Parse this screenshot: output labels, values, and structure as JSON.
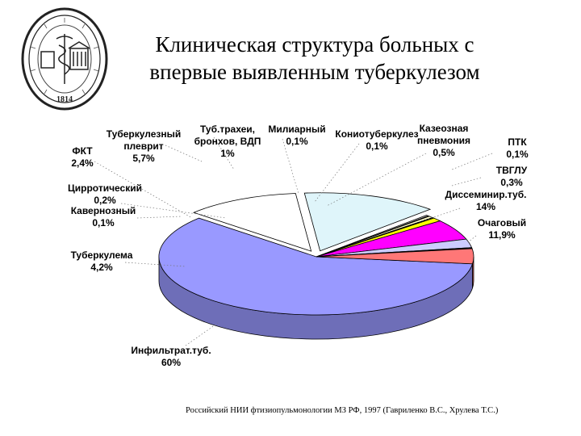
{
  "title_line1": "Клиническая структура больных с",
  "title_line2": "впервые выявленным туберкулезом",
  "seal": {
    "year": "1814",
    "icon": "caduceus-emblem"
  },
  "source": "Российский НИИ фтизиопульмонологии МЗ РФ, 1997 (Гавриленко В.С., Хрулева Т.С.)",
  "chart_data": {
    "type": "pie",
    "title": "Клиническая структура больных с впервые выявленным туберкулезом",
    "legend": "none",
    "slices": [
      {
        "name": "Инфильтрат.туб.",
        "value": 60,
        "label": "60%",
        "color": "#9999ff"
      },
      {
        "name": "Очаговый",
        "value": 11.9,
        "label": "11,9%",
        "color": "#ffffff"
      },
      {
        "name": "Диссеминир.туб.",
        "value": 14,
        "label": "14%",
        "color": "#dff5fa"
      },
      {
        "name": "ТВГЛУ",
        "value": 0.3,
        "label": "0,3%",
        "color": "#a0a0a0"
      },
      {
        "name": "ПТК",
        "value": 0.1,
        "label": "0,1%",
        "color": "#663399"
      },
      {
        "name": "Казеозная пневмония",
        "value": 0.5,
        "label": "0,5%",
        "color": "#ffffcc"
      },
      {
        "name": "Кониотуберкулез",
        "value": 0.1,
        "label": "0,1%",
        "color": "#990033"
      },
      {
        "name": "Милиарный",
        "value": 0.1,
        "label": "0,1%",
        "color": "#333333"
      },
      {
        "name": "Туб.трахеи, бронхов, ВДП",
        "value": 1,
        "label": "1%",
        "color": "#ffff00"
      },
      {
        "name": "Туберкулезный плеврит",
        "value": 5.7,
        "label": "5,7%",
        "color": "#ff00ff"
      },
      {
        "name": "ФКТ",
        "value": 2.4,
        "label": "2,4%",
        "color": "#ccccff"
      },
      {
        "name": "Цирротический",
        "value": 0.2,
        "label": "0,2%",
        "color": "#222266"
      },
      {
        "name": "Кавернозный",
        "value": 0.1,
        "label": "0,1%",
        "color": "#6666cc"
      },
      {
        "name": "Туберкулема",
        "value": 4.2,
        "label": "4,2%",
        "color": "#ff7777"
      }
    ],
    "labels": [
      {
        "lines": [
          "Туберкулезный",
          "плеврит"
        ],
        "value": "5,7%"
      },
      {
        "lines": [
          "Туб.трахеи,",
          "бронхов, ВДП"
        ],
        "value": "1%"
      },
      {
        "lines": [
          "Милиарный"
        ],
        "value": "0,1%"
      },
      {
        "lines": [
          "Кониотуберкулез"
        ],
        "value": "0,1%"
      },
      {
        "lines": [
          "Казеозная",
          "пневмония"
        ],
        "value": "0,5%"
      },
      {
        "lines": [
          "ПТК"
        ],
        "value": "0,1%"
      },
      {
        "lines": [
          "ФКТ"
        ],
        "value": "2,4%"
      },
      {
        "lines": [
          "ТВГЛУ"
        ],
        "value": "0,3%"
      },
      {
        "lines": [
          "Цирротический"
        ],
        "value": "0,2%"
      },
      {
        "lines": [
          "Диссеминир.туб."
        ],
        "value": "14%"
      },
      {
        "lines": [
          "Кавернозный"
        ],
        "value": "0,1%"
      },
      {
        "lines": [
          "Очаговый"
        ],
        "value": "11,9%"
      },
      {
        "lines": [
          "Туберкулема"
        ],
        "value": "4,2%"
      },
      {
        "lines": [
          "Инфильтрат.туб."
        ],
        "value": "60%"
      }
    ]
  }
}
